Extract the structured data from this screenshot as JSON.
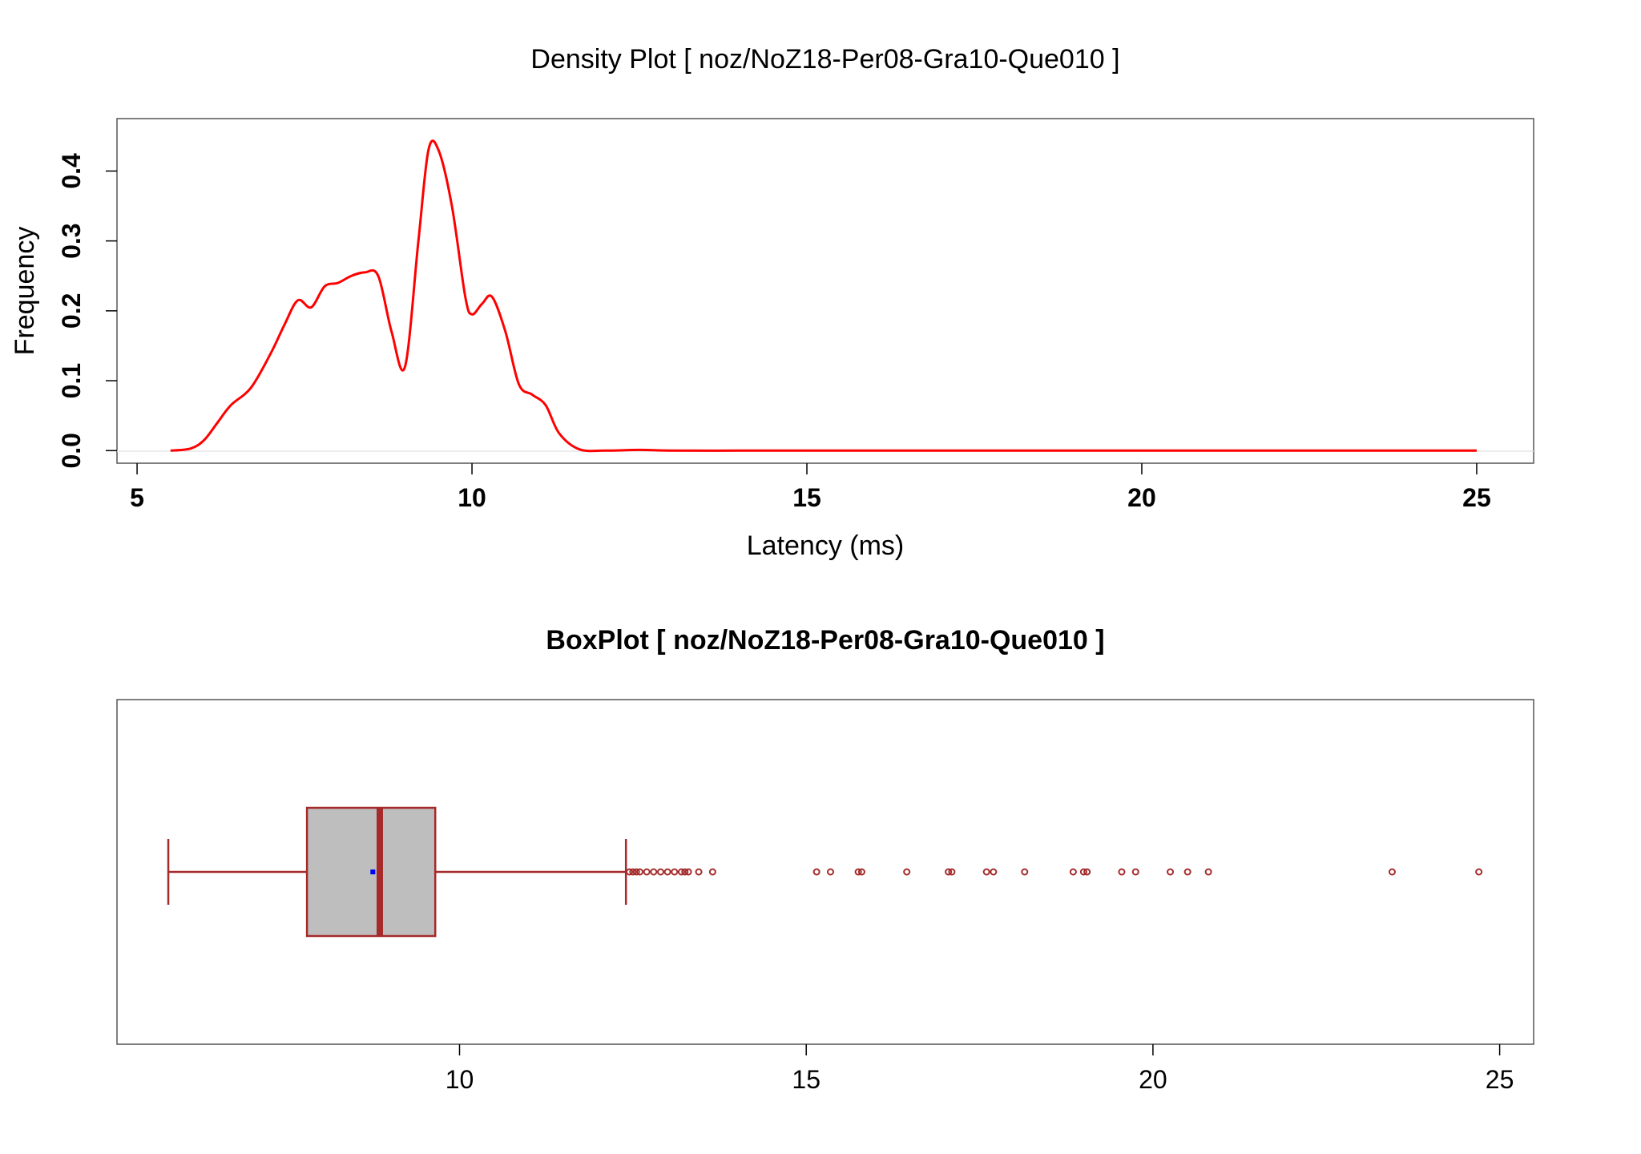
{
  "colors": {
    "density_line": "#ff0000",
    "box_stroke": "#a52a2a",
    "box_fill": "#bebebe",
    "mean_marker": "#0000ff",
    "frame": "#555555"
  },
  "chart_data": [
    {
      "type": "line",
      "title": "Density Plot [ noz/NoZ18-Per08-Gra10-Que010 ]",
      "xlabel": "Latency (ms)",
      "ylabel": "Frequency",
      "xlim": [
        4.7,
        25.85
      ],
      "ylim": [
        -0.018,
        0.475
      ],
      "x_ticks": [
        5,
        10,
        15,
        20,
        25
      ],
      "x_tick_labels": [
        "5",
        "10",
        "15",
        "20",
        "25"
      ],
      "y_ticks": [
        0.0,
        0.1,
        0.2,
        0.3,
        0.4
      ],
      "y_tick_labels": [
        "0.0",
        "0.1",
        "0.2",
        "0.3",
        "0.4"
      ],
      "grid": false,
      "series": [
        {
          "x": [
            5.5,
            5.8,
            6.0,
            6.2,
            6.4,
            6.7,
            7.0,
            7.2,
            7.4,
            7.6,
            7.8,
            8.0,
            8.2,
            8.4,
            8.6,
            8.8,
            9.0,
            9.2,
            9.35,
            9.5,
            9.7,
            9.9,
            10.0,
            10.15,
            10.3,
            10.5,
            10.7,
            10.9,
            11.1,
            11.3,
            11.6,
            12.0,
            12.5,
            13.0,
            14.0,
            15.0,
            20.0,
            25.0
          ],
          "y": [
            0.0,
            0.003,
            0.015,
            0.04,
            0.065,
            0.09,
            0.14,
            0.18,
            0.215,
            0.205,
            0.235,
            0.24,
            0.25,
            0.255,
            0.25,
            0.17,
            0.12,
            0.3,
            0.43,
            0.43,
            0.35,
            0.22,
            0.195,
            0.21,
            0.22,
            0.17,
            0.095,
            0.08,
            0.065,
            0.025,
            0.002,
            0.0,
            0.001,
            0.0,
            0.0,
            0.0,
            0.0,
            0.0
          ]
        }
      ]
    },
    {
      "type": "box",
      "title": "BoxPlot [ noz/NoZ18-Per08-Gra10-Que010 ]",
      "xlim": [
        5.06,
        25.49
      ],
      "x_ticks": [
        10,
        15,
        20,
        25
      ],
      "x_tick_labels": [
        "10",
        "15",
        "20",
        "25"
      ],
      "whisker_low": 5.8,
      "q1": 7.8,
      "median": 8.85,
      "q3": 9.65,
      "whisker_high": 12.4,
      "mean": 8.75,
      "outliers": [
        12.45,
        12.5,
        12.55,
        12.6,
        12.7,
        12.8,
        12.9,
        13.0,
        13.1,
        13.2,
        13.25,
        13.3,
        13.45,
        13.65,
        15.15,
        15.35,
        15.75,
        15.8,
        16.45,
        17.05,
        17.1,
        17.6,
        17.7,
        18.15,
        18.85,
        19.0,
        19.05,
        19.55,
        19.75,
        20.25,
        20.5,
        20.8,
        23.45,
        24.7
      ]
    }
  ]
}
